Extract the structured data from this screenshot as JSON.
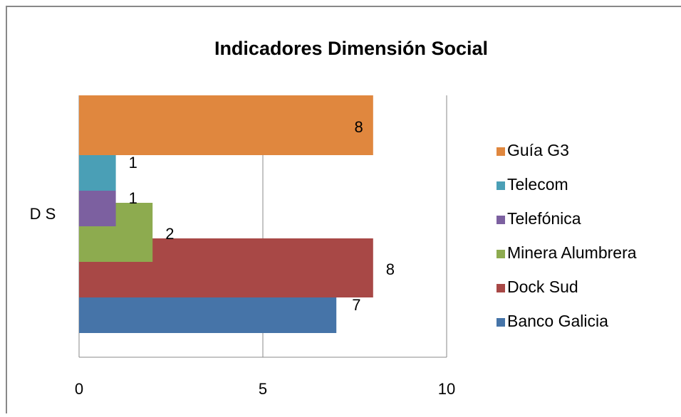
{
  "chart_data": {
    "type": "hbar",
    "title": "Indicadores Dimensión Social",
    "categories": [
      "D S"
    ],
    "series": [
      {
        "name": "Banco Galicia",
        "color": "#4674a8",
        "values": [
          7
        ]
      },
      {
        "name": "Dock Sud",
        "color": "#a84846",
        "values": [
          8
        ]
      },
      {
        "name": "Minera Alumbrera",
        "color": "#8dab4f",
        "values": [
          2
        ]
      },
      {
        "name": "Telefónica",
        "color": "#7c60a0",
        "values": [
          1
        ]
      },
      {
        "name": "Telecom",
        "color": "#4a9fb6",
        "values": [
          1
        ]
      },
      {
        "name": "Guía G3",
        "color": "#e0873e",
        "values": [
          8
        ]
      }
    ],
    "xlim": [
      0,
      10
    ],
    "xticks": [
      0,
      5,
      10
    ],
    "grid": true,
    "legend": "right"
  }
}
